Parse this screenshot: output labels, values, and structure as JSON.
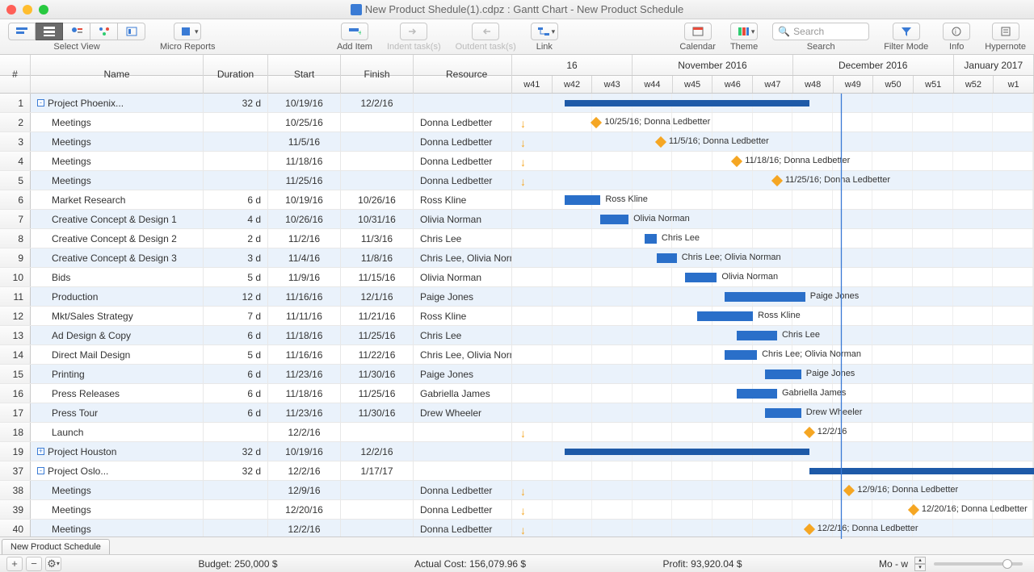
{
  "window": {
    "title": "New Product Shedule(1).cdpz : Gantt Chart - New Product Schedule"
  },
  "toolbar": {
    "selectView": "Select View",
    "microReports": "Micro Reports",
    "addItem": "Add Item",
    "indent": "Indent task(s)",
    "outdent": "Outdent task(s)",
    "link": "Link",
    "calendar": "Calendar",
    "theme": "Theme",
    "search": "Search",
    "searchLabel": "Search",
    "filterMode": "Filter Mode",
    "info": "Info",
    "hypernote": "Hypernote"
  },
  "columns": {
    "num": "#",
    "name": "Name",
    "duration": "Duration",
    "start": "Start",
    "finish": "Finish",
    "resource": "Resource"
  },
  "colWidths": {
    "num": 38,
    "name": 214,
    "duration": 80,
    "start": 90,
    "finish": 90,
    "resource": 122
  },
  "timeline": {
    "months": [
      {
        "label": "16",
        "span": 3
      },
      {
        "label": "November 2016",
        "span": 4
      },
      {
        "label": "December 2016",
        "span": 4
      },
      {
        "label": "January 2017",
        "span": 2
      }
    ],
    "weeks": [
      "w41",
      "w42",
      "w43",
      "w44",
      "w45",
      "w46",
      "w47",
      "w48",
      "w49",
      "w50",
      "w51",
      "w52",
      "w1"
    ],
    "startWeek": 41,
    "todayWeek": 49.2,
    "colors": {
      "bar": "#2a6fc9",
      "summary": "#1e5aa8",
      "milestone": "#f5a623",
      "today": "#3a7bd5"
    }
  },
  "rows": [
    {
      "n": 1,
      "name": "Project Phoenix...",
      "dur": "32 d",
      "start": "10/19/16",
      "finish": "12/2/16",
      "res": "",
      "type": "summary",
      "indent": 0,
      "expand": "-",
      "barStart": 42.3,
      "barEnd": 48.4
    },
    {
      "n": 2,
      "name": "Meetings",
      "dur": "",
      "start": "10/25/16",
      "finish": "",
      "res": "Donna Ledbetter",
      "type": "milestone",
      "indent": 1,
      "arrow": 41.2,
      "ms": 43.1,
      "label": "10/25/16; Donna Ledbetter"
    },
    {
      "n": 3,
      "name": "Meetings",
      "dur": "",
      "start": "11/5/16",
      "finish": "",
      "res": "Donna Ledbetter",
      "type": "milestone",
      "indent": 1,
      "arrow": 41.2,
      "ms": 44.7,
      "label": "11/5/16; Donna Ledbetter"
    },
    {
      "n": 4,
      "name": "Meetings",
      "dur": "",
      "start": "11/18/16",
      "finish": "",
      "res": "Donna Ledbetter",
      "type": "milestone",
      "indent": 1,
      "arrow": 41.2,
      "ms": 46.6,
      "label": "11/18/16; Donna Ledbetter"
    },
    {
      "n": 5,
      "name": "Meetings",
      "dur": "",
      "start": "11/25/16",
      "finish": "",
      "res": "Donna Ledbetter",
      "type": "milestone",
      "indent": 1,
      "arrow": 41.2,
      "ms": 47.6,
      "label": "11/25/16; Donna Ledbetter"
    },
    {
      "n": 6,
      "name": "Market Research",
      "dur": "6 d",
      "start": "10/19/16",
      "finish": "10/26/16",
      "res": "Ross Kline",
      "type": "task",
      "indent": 1,
      "barStart": 42.3,
      "barEnd": 43.2,
      "label": "Ross Kline"
    },
    {
      "n": 7,
      "name": "Creative Concept & Design 1",
      "dur": "4 d",
      "start": "10/26/16",
      "finish": "10/31/16",
      "res": "Olivia Norman",
      "type": "task",
      "indent": 1,
      "barStart": 43.2,
      "barEnd": 43.9,
      "label": "Olivia Norman"
    },
    {
      "n": 8,
      "name": "Creative Concept & Design 2",
      "dur": "2 d",
      "start": "11/2/16",
      "finish": "11/3/16",
      "res": "Chris Lee",
      "type": "task",
      "indent": 1,
      "barStart": 44.3,
      "barEnd": 44.6,
      "label": "Chris Lee"
    },
    {
      "n": 9,
      "name": "Creative Concept & Design 3",
      "dur": "3 d",
      "start": "11/4/16",
      "finish": "11/8/16",
      "res": "Chris Lee, Olivia Norman",
      "type": "task",
      "indent": 1,
      "barStart": 44.6,
      "barEnd": 45.1,
      "label": "Chris Lee; Olivia Norman"
    },
    {
      "n": 10,
      "name": "Bids",
      "dur": "5 d",
      "start": "11/9/16",
      "finish": "11/15/16",
      "res": "Olivia Norman",
      "type": "task",
      "indent": 1,
      "barStart": 45.3,
      "barEnd": 46.1,
      "label": "Olivia Norman"
    },
    {
      "n": 11,
      "name": "Production",
      "dur": "12 d",
      "start": "11/16/16",
      "finish": "12/1/16",
      "res": "Paige Jones",
      "type": "task",
      "indent": 1,
      "barStart": 46.3,
      "barEnd": 48.3,
      "label": "Paige Jones"
    },
    {
      "n": 12,
      "name": "Mkt/Sales Strategy",
      "dur": "7 d",
      "start": "11/11/16",
      "finish": "11/21/16",
      "res": "Ross Kline",
      "type": "task",
      "indent": 1,
      "barStart": 45.6,
      "barEnd": 47.0,
      "label": "Ross Kline"
    },
    {
      "n": 13,
      "name": "Ad Design & Copy",
      "dur": "6 d",
      "start": "11/18/16",
      "finish": "11/25/16",
      "res": "Chris Lee",
      "type": "task",
      "indent": 1,
      "barStart": 46.6,
      "barEnd": 47.6,
      "label": "Chris Lee"
    },
    {
      "n": 14,
      "name": "Direct Mail Design",
      "dur": "5 d",
      "start": "11/16/16",
      "finish": "11/22/16",
      "res": "Chris Lee, Olivia Norman",
      "type": "task",
      "indent": 1,
      "barStart": 46.3,
      "barEnd": 47.1,
      "label": "Chris Lee; Olivia Norman"
    },
    {
      "n": 15,
      "name": "Printing",
      "dur": "6 d",
      "start": "11/23/16",
      "finish": "11/30/16",
      "res": "Paige Jones",
      "type": "task",
      "indent": 1,
      "barStart": 47.3,
      "barEnd": 48.2,
      "label": "Paige Jones"
    },
    {
      "n": 16,
      "name": "Press Releases",
      "dur": "6 d",
      "start": "11/18/16",
      "finish": "11/25/16",
      "res": "Gabriella  James",
      "type": "task",
      "indent": 1,
      "barStart": 46.6,
      "barEnd": 47.6,
      "label": "Gabriella  James"
    },
    {
      "n": 17,
      "name": "Press Tour",
      "dur": "6 d",
      "start": "11/23/16",
      "finish": "11/30/16",
      "res": "Drew Wheeler",
      "type": "task",
      "indent": 1,
      "barStart": 47.3,
      "barEnd": 48.2,
      "label": "Drew Wheeler"
    },
    {
      "n": 18,
      "name": "Launch",
      "dur": "",
      "start": "12/2/16",
      "finish": "",
      "res": "",
      "type": "milestone",
      "indent": 1,
      "arrow": 41.2,
      "ms": 48.4,
      "label": "12/2/16"
    },
    {
      "n": 19,
      "name": "Project Houston",
      "dur": "32 d",
      "start": "10/19/16",
      "finish": "12/2/16",
      "res": "",
      "type": "summary",
      "indent": 0,
      "expand": "+",
      "barStart": 42.3,
      "barEnd": 48.4
    },
    {
      "n": 37,
      "name": "Project Oslo...",
      "dur": "32 d",
      "start": "12/2/16",
      "finish": "1/17/17",
      "res": "",
      "type": "summary",
      "indent": 0,
      "expand": "-",
      "barStart": 48.4,
      "barEnd": 55.0
    },
    {
      "n": 38,
      "name": "Meetings",
      "dur": "",
      "start": "12/9/16",
      "finish": "",
      "res": "Donna Ledbetter",
      "type": "milestone",
      "indent": 1,
      "arrow": 41.2,
      "ms": 49.4,
      "label": "12/9/16; Donna Ledbetter"
    },
    {
      "n": 39,
      "name": "Meetings",
      "dur": "",
      "start": "12/20/16",
      "finish": "",
      "res": "Donna Ledbetter",
      "type": "milestone",
      "indent": 1,
      "arrow": 41.2,
      "ms": 51.0,
      "label": "12/20/16; Donna Ledbetter"
    },
    {
      "n": 40,
      "name": "Meetings",
      "dur": "",
      "start": "12/2/16",
      "finish": "",
      "res": "Donna Ledbetter",
      "type": "milestone",
      "indent": 1,
      "arrow": 41.2,
      "ms": 48.4,
      "label": "12/2/16; Donna Ledbetter"
    }
  ],
  "sheetTab": "New Product Schedule",
  "status": {
    "budget": "Budget: 250,000 $",
    "actual": "Actual Cost: 156,079.96 $",
    "profit": "Profit: 93,920.04 $",
    "zoom": "Mo - w"
  }
}
